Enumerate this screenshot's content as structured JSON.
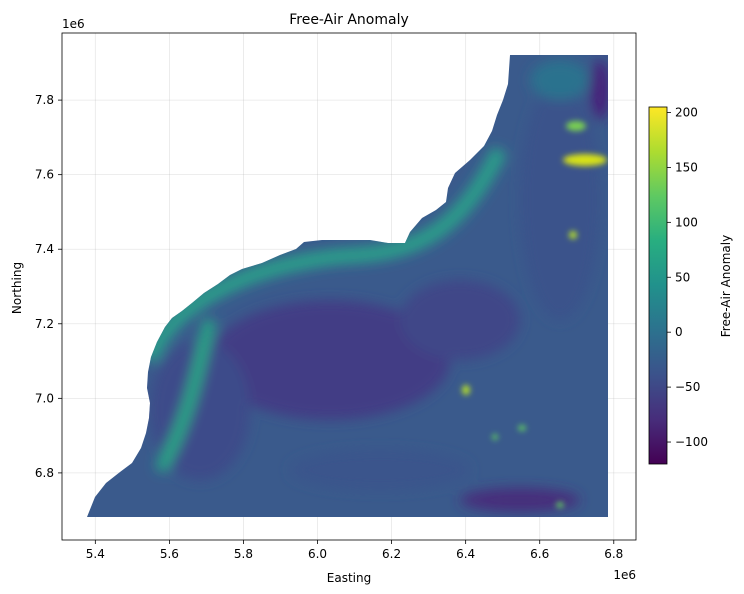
{
  "chart_data": {
    "type": "heatmap",
    "title": "Free-Air Anomaly",
    "xlabel": "Easting",
    "ylabel": "Northing",
    "x_multiplier_label": "1e6",
    "y_multiplier_label": "1e6",
    "xlim": [
      5.31,
      6.86
    ],
    "ylim": [
      6.62,
      7.98
    ],
    "x_ticks": [
      5.4,
      5.6,
      5.8,
      6.0,
      6.2,
      6.4,
      6.6,
      6.8
    ],
    "x_tick_labels": [
      "5.4",
      "5.6",
      "5.8",
      "6.0",
      "6.2",
      "6.4",
      "6.6",
      "6.8"
    ],
    "y_ticks": [
      6.8,
      7.0,
      7.2,
      7.4,
      7.6,
      7.8
    ],
    "y_tick_labels": [
      "6.8",
      "7.0",
      "7.2",
      "7.4",
      "7.6",
      "7.8"
    ],
    "grid": true,
    "colormap": "viridis",
    "colorbar": {
      "label": "Free-Air Anomaly",
      "range": [
        -120,
        205
      ],
      "ticks": [
        -100,
        -50,
        0,
        50,
        100,
        150,
        200
      ],
      "tick_labels": [
        "−100",
        "−50",
        "0",
        "50",
        "100",
        "150",
        "200"
      ]
    }
  }
}
